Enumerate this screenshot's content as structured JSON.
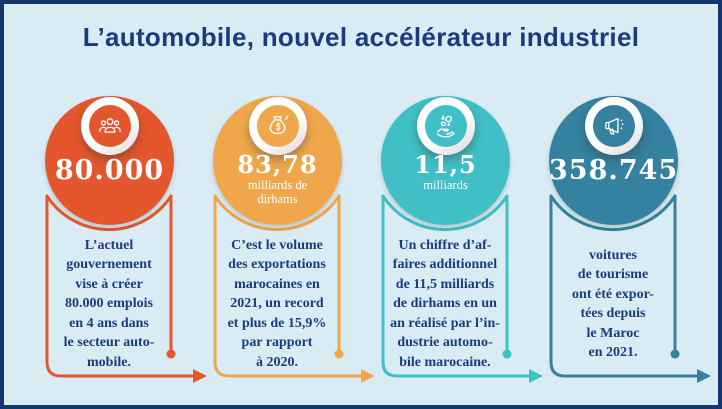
{
  "title": "L’automobile, nouvel accélérateur industriel",
  "colors": {
    "background": "#d9ecf4",
    "border_navy": "#14356f",
    "text_navy": "#1b3b7d"
  },
  "columns": [
    {
      "icon": "people-group-icon",
      "color": "#e4572e",
      "value": "80.000",
      "unit_lines": [],
      "desc_lines": [
        "L’actuel",
        "gouvernement",
        "vise à créer",
        "80.000 emplois",
        "en 4 ans dans",
        "le secteur auto-",
        "mobile."
      ]
    },
    {
      "icon": "money-bag-icon",
      "color": "#f0a74b",
      "value": "83,78",
      "unit_lines": [
        "milliards de",
        "dirhams"
      ],
      "desc_lines": [
        "C’est le volume",
        "des exportations",
        "marocaines en",
        "2021, un record",
        "et plus de 15,9%",
        "par rapport",
        "à 2020."
      ]
    },
    {
      "icon": "hand-coins-icon",
      "color": "#40bfc6",
      "value": "11,5",
      "unit_lines": [
        "milliards"
      ],
      "desc_lines": [
        "Un chiffre d’af-",
        "faires additionnel",
        "de 11,5 milliards",
        "de dirhams en un",
        "an réalisé par l’in-",
        "dustrie automo-",
        "bile marocaine."
      ]
    },
    {
      "icon": "megaphone-icon",
      "color": "#34829f",
      "value": "358.745",
      "unit_lines": [],
      "desc_lines": [
        "voitures",
        "de tourisme",
        "ont été expor-",
        "tées depuis",
        "le Maroc",
        "en 2021."
      ]
    }
  ]
}
